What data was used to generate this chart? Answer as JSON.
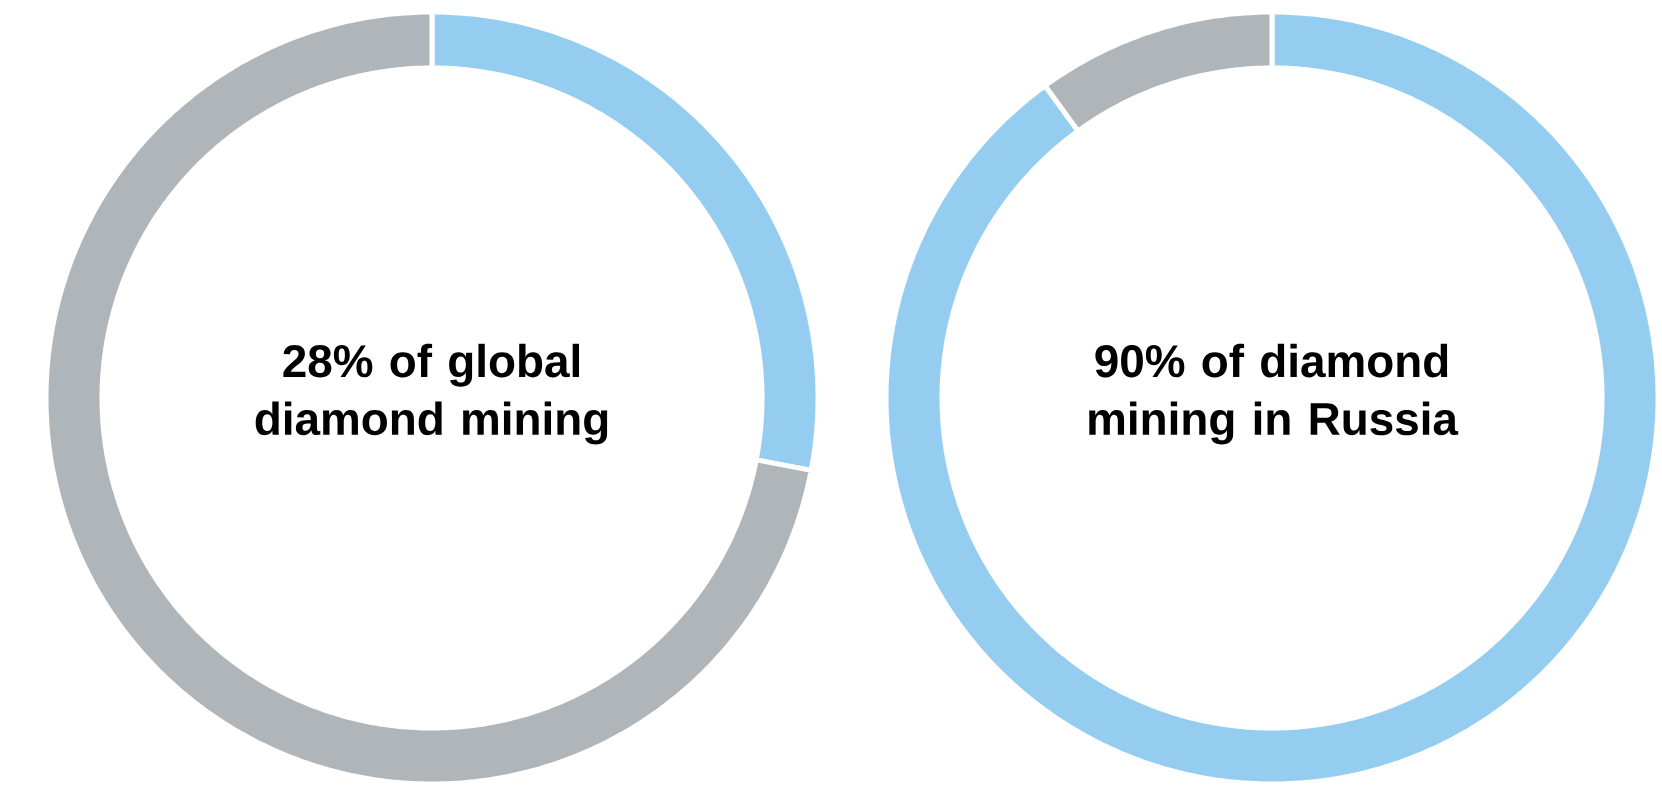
{
  "chart_data": [
    {
      "type": "donut",
      "title": "28% of global diamond mining",
      "categories": [
        null,
        null
      ],
      "values": [
        28,
        72
      ],
      "colors": [
        "#94cdf0",
        "#b0b5b9"
      ]
    },
    {
      "type": "donut",
      "title": "90% of diamond mining in Russia",
      "categories": [
        null,
        null
      ],
      "values": [
        90,
        10
      ],
      "colors": [
        "#94cdf0",
        "#b0b5b9"
      ]
    }
  ]
}
